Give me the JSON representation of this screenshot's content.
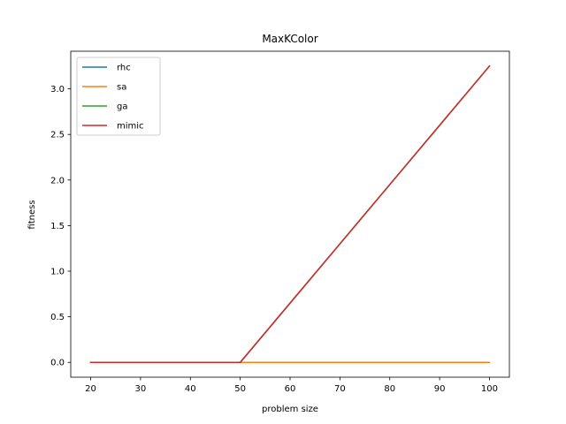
{
  "chart_data": {
    "type": "line",
    "title": "MaxKColor",
    "xlabel": "problem size",
    "ylabel": "fitness",
    "xlim": [
      16,
      104
    ],
    "ylim": [
      -0.1625,
      3.4125
    ],
    "xticks": [
      20,
      30,
      40,
      50,
      60,
      70,
      80,
      90,
      100
    ],
    "yticks": [
      0.0,
      0.5,
      1.0,
      1.5,
      2.0,
      2.5,
      3.0
    ],
    "ytick_labels": [
      "0.0",
      "0.5",
      "1.0",
      "1.5",
      "2.0",
      "2.5",
      "3.0"
    ],
    "xtick_labels": [
      "20",
      "30",
      "40",
      "50",
      "60",
      "70",
      "80",
      "90",
      "100"
    ],
    "grid": false,
    "legend_position": "top-left",
    "x": [
      20,
      30,
      40,
      50,
      60,
      70,
      80,
      90,
      100
    ],
    "series": [
      {
        "name": "rhc",
        "color": "#1f77b4",
        "values": [
          0,
          0,
          0,
          0,
          0.65,
          1.3,
          1.95,
          2.6,
          3.25
        ]
      },
      {
        "name": "sa",
        "color": "#ff7f0e",
        "values": [
          0,
          0,
          0,
          0,
          0,
          0,
          0,
          0,
          0
        ]
      },
      {
        "name": "ga",
        "color": "#2ca02c",
        "values": [
          0,
          0,
          0,
          0,
          0.65,
          1.3,
          1.95,
          2.6,
          3.25
        ]
      },
      {
        "name": "mimic",
        "color": "#d62728",
        "values": [
          0,
          0,
          0,
          0,
          0.65,
          1.3,
          1.95,
          2.6,
          3.25
        ]
      }
    ]
  }
}
